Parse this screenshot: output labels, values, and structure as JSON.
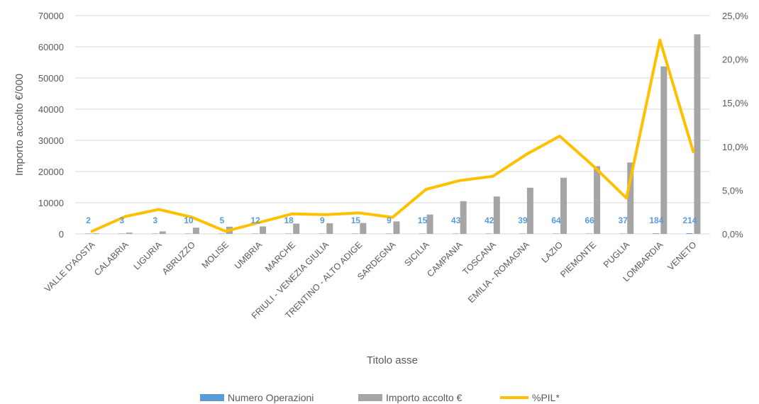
{
  "chart_data": {
    "type": "bar",
    "categories": [
      "VALLE D'AOSTA",
      "CALABRIA",
      "LIGURIA",
      "ABRUZZO",
      "MOLISE",
      "UMBRIA",
      "MARCHE",
      "FRIULI - VENEZIA GIULIA",
      "TRENTINO - ALTO ADIGE",
      "SARDEGNA",
      "SICILIA",
      "CAMPANIA",
      "TOSCANA",
      "EMILIA - ROMAGNA",
      "LAZIO",
      "PIEMONTE",
      "PUGLIA",
      "LOMBARDIA",
      "VENETO"
    ],
    "xlabel": "Titolo asse",
    "ylabel": "Importo accolto €/000",
    "ylim": [
      0,
      70000
    ],
    "yticks": [
      "0",
      "10000",
      "20000",
      "30000",
      "40000",
      "50000",
      "60000",
      "70000"
    ],
    "y2lim": [
      0,
      25
    ],
    "y2ticks": [
      "0,0%",
      "5,0%",
      "10,0%",
      "15,0%",
      "20,0%",
      "25,0%"
    ],
    "grid": true,
    "legend_position": "bottom",
    "series": [
      {
        "name": "Numero Operazioni",
        "kind": "bar",
        "axis": "left",
        "color": "#5B9BD5",
        "values": [
          2,
          3,
          3,
          10,
          5,
          12,
          18,
          9,
          15,
          9,
          15,
          43,
          42,
          39,
          64,
          66,
          37,
          184,
          214
        ],
        "labels": [
          "2",
          "3",
          "3",
          "10",
          "5",
          "12",
          "18",
          "9",
          "15",
          "9",
          "15",
          "43",
          "42",
          "39",
          "64",
          "66",
          "37",
          "184",
          "214"
        ]
      },
      {
        "name": "Importo accolto €",
        "kind": "bar",
        "axis": "left",
        "color": "#A5A5A5",
        "values": [
          200,
          400,
          800,
          2000,
          2300,
          2400,
          3300,
          3400,
          3500,
          4000,
          6200,
          10500,
          12000,
          14800,
          18000,
          21700,
          22900,
          53700,
          64000
        ]
      },
      {
        "name": "%PIL*",
        "kind": "line",
        "axis": "right",
        "color": "#FFC000",
        "values": [
          0.3,
          2.0,
          2.8,
          1.9,
          0.3,
          1.3,
          2.3,
          2.2,
          2.4,
          1.9,
          5.1,
          6.1,
          6.6,
          9.1,
          11.2,
          7.8,
          4.1,
          22.2,
          9.4
        ]
      }
    ]
  }
}
